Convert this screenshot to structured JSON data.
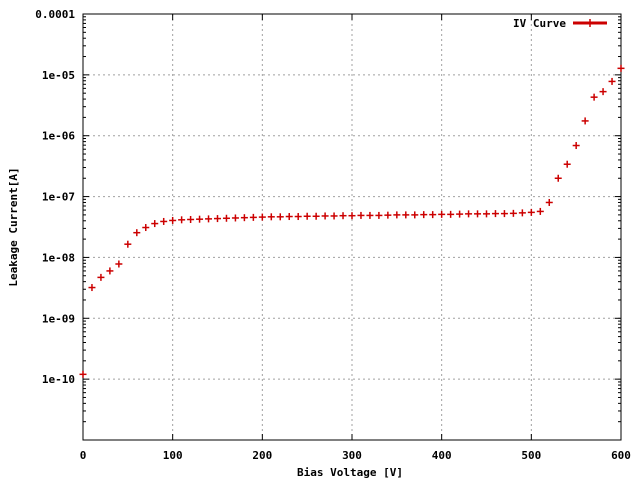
{
  "chart_data": {
    "type": "scatter",
    "xlabel": "Bias Voltage [V]",
    "ylabel": "Leakage Current[A]",
    "xlim": [
      0,
      600
    ],
    "ylim": [
      1e-11,
      0.0001
    ],
    "yscale": "log",
    "grid": true,
    "legend_position": "top-right",
    "x_ticks": [
      "0",
      "100",
      "200",
      "300",
      "400",
      "500",
      "600"
    ],
    "y_ticks": [
      "1e-10",
      "1e-09",
      "1e-08",
      "1e-07",
      "1e-06",
      "1e-05",
      "0.0001"
    ],
    "series": [
      {
        "name": "IV Curve",
        "color": "#cc0000",
        "marker": "plus",
        "points": [
          [
            0,
            1.2e-10
          ],
          [
            10,
            3.2e-09
          ],
          [
            20,
            4.7e-09
          ],
          [
            30,
            6e-09
          ],
          [
            40,
            7.8e-09
          ],
          [
            50,
            1.65e-08
          ],
          [
            60,
            2.55e-08
          ],
          [
            70,
            3.1e-08
          ],
          [
            80,
            3.6e-08
          ],
          [
            90,
            3.9e-08
          ],
          [
            100,
            4.05e-08
          ],
          [
            110,
            4.15e-08
          ],
          [
            120,
            4.2e-08
          ],
          [
            130,
            4.25e-08
          ],
          [
            140,
            4.3e-08
          ],
          [
            150,
            4.35e-08
          ],
          [
            160,
            4.4e-08
          ],
          [
            170,
            4.45e-08
          ],
          [
            180,
            4.5e-08
          ],
          [
            190,
            4.55e-08
          ],
          [
            200,
            4.6e-08
          ],
          [
            210,
            4.65e-08
          ],
          [
            220,
            4.65e-08
          ],
          [
            230,
            4.7e-08
          ],
          [
            240,
            4.7e-08
          ],
          [
            250,
            4.75e-08
          ],
          [
            260,
            4.75e-08
          ],
          [
            270,
            4.8e-08
          ],
          [
            280,
            4.8e-08
          ],
          [
            290,
            4.85e-08
          ],
          [
            300,
            4.85e-08
          ],
          [
            310,
            4.9e-08
          ],
          [
            320,
            4.9e-08
          ],
          [
            330,
            4.9e-08
          ],
          [
            340,
            4.95e-08
          ],
          [
            350,
            5e-08
          ],
          [
            360,
            5e-08
          ],
          [
            370,
            5e-08
          ],
          [
            380,
            5.05e-08
          ],
          [
            390,
            5.05e-08
          ],
          [
            400,
            5.1e-08
          ],
          [
            410,
            5.1e-08
          ],
          [
            420,
            5.15e-08
          ],
          [
            430,
            5.2e-08
          ],
          [
            440,
            5.2e-08
          ],
          [
            450,
            5.2e-08
          ],
          [
            460,
            5.25e-08
          ],
          [
            470,
            5.25e-08
          ],
          [
            480,
            5.3e-08
          ],
          [
            490,
            5.4e-08
          ],
          [
            500,
            5.5e-08
          ],
          [
            510,
            5.7e-08
          ],
          [
            520,
            8e-08
          ],
          [
            530,
            2e-07
          ],
          [
            540,
            3.4e-07
          ],
          [
            550,
            6.9e-07
          ],
          [
            560,
            1.75e-06
          ],
          [
            570,
            4.3e-06
          ],
          [
            580,
            5.3e-06
          ],
          [
            590,
            7.8e-06
          ],
          [
            600,
            1.28e-05
          ]
        ]
      }
    ]
  }
}
